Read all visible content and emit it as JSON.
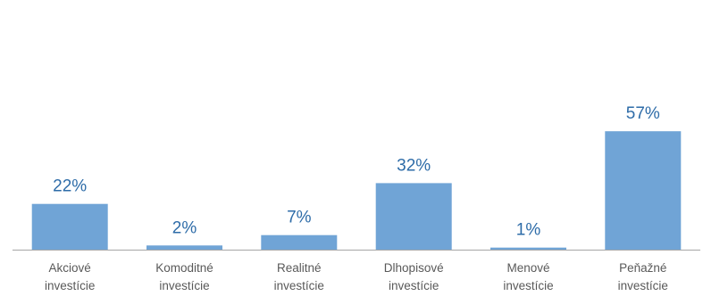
{
  "chart_data": {
    "type": "bar",
    "categories": [
      [
        "Akciové",
        "investície"
      ],
      [
        "Komoditné",
        "investície"
      ],
      [
        "Realitné",
        "investície"
      ],
      [
        "Dlhopisové",
        "investície"
      ],
      [
        "Menové",
        "investície"
      ],
      [
        "Peňažné",
        "investície"
      ]
    ],
    "values": [
      22,
      2,
      7,
      32,
      1,
      57
    ],
    "value_labels": [
      "22%",
      "2%",
      "7%",
      "32%",
      "1%",
      "57%"
    ],
    "title": "",
    "xlabel": "",
    "ylabel": "",
    "ylim": [
      0,
      100
    ],
    "grid": false,
    "legend": "none",
    "colors": {
      "bar": "#70a4d6",
      "value_label": "#2e6ca8",
      "category_label": "#595959",
      "axis": "#a6a6a6"
    }
  }
}
